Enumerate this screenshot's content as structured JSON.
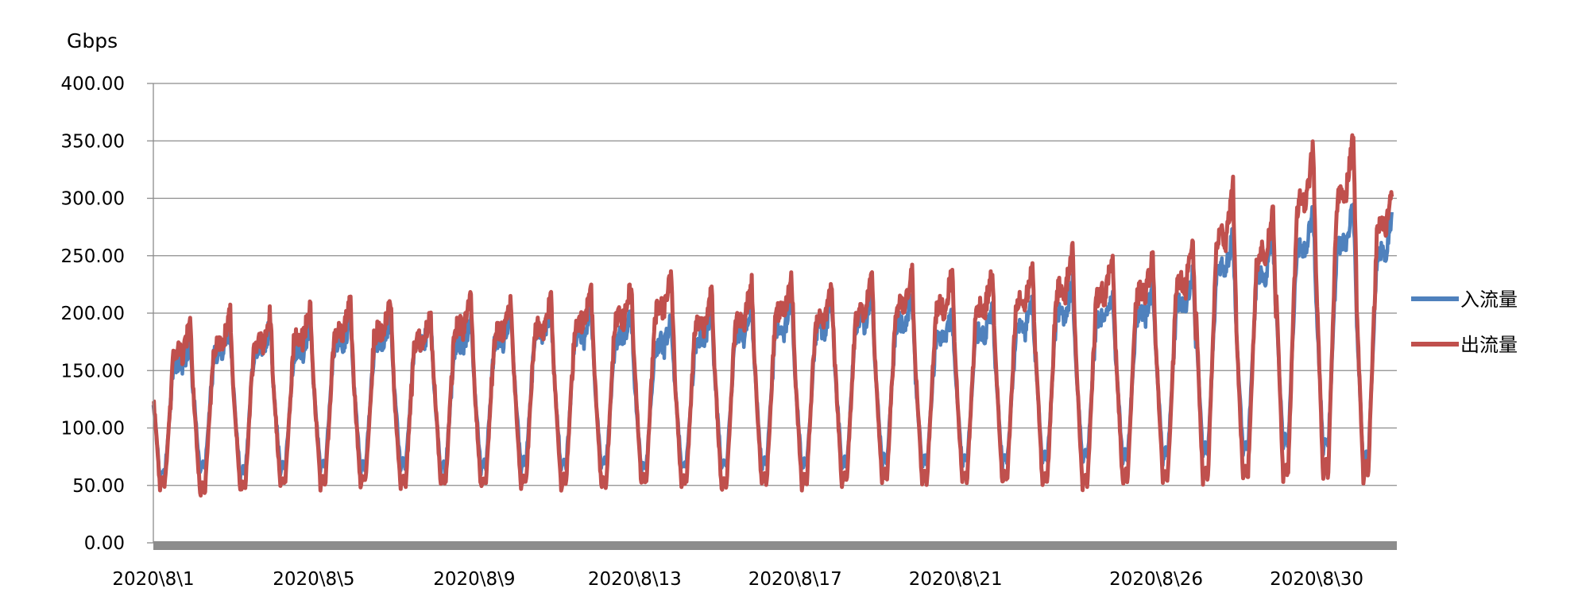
{
  "chart_data": {
    "type": "line",
    "unit_label": "Gbps",
    "y_ticks": [
      "0.00",
      "50.00",
      "100.00",
      "150.00",
      "200.00",
      "250.00",
      "300.00",
      "350.00",
      "400.00"
    ],
    "ylim": [
      0,
      400
    ],
    "x_ticks": [
      "2020\\8\\1",
      "2020\\8\\5",
      "2020\\8\\9",
      "2020\\8\\13",
      "2020\\8\\17",
      "2020\\8\\21",
      "2020\\8\\26",
      "2020\\8\\30"
    ],
    "x_tick_days": [
      1,
      5,
      9,
      13,
      17,
      21,
      26,
      30
    ],
    "xlim": [
      "2020-08-01",
      "2020-08-31"
    ],
    "grid": "horizontal",
    "legend_position": "right",
    "x": [
      "2020-08-01",
      "2020-08-02",
      "2020-08-03",
      "2020-08-04",
      "2020-08-05",
      "2020-08-06",
      "2020-08-07",
      "2020-08-08",
      "2020-08-09",
      "2020-08-10",
      "2020-08-11",
      "2020-08-12",
      "2020-08-13",
      "2020-08-14",
      "2020-08-15",
      "2020-08-16",
      "2020-08-17",
      "2020-08-18",
      "2020-08-19",
      "2020-08-20",
      "2020-08-21",
      "2020-08-22",
      "2020-08-23",
      "2020-08-24",
      "2020-08-25",
      "2020-08-26",
      "2020-08-27",
      "2020-08-28",
      "2020-08-29",
      "2020-08-30",
      "2020-08-31"
    ],
    "series": [
      {
        "name": "入流量",
        "color": "#4F81BD",
        "daily_low": [
          55,
          60,
          55,
          60,
          62,
          60,
          62,
          58,
          60,
          62,
          60,
          62,
          60,
          62,
          60,
          62,
          60,
          62,
          65,
          65,
          65,
          65,
          65,
          68,
          68,
          68,
          70,
          75,
          78,
          75,
          62
        ],
        "daily_peak": [
          175,
          185,
          190,
          190,
          195,
          195,
          195,
          195,
          200,
          205,
          205,
          200,
          195,
          200,
          205,
          210,
          210,
          215,
          215,
          200,
          205,
          210,
          225,
          220,
          225,
          235,
          270,
          265,
          290,
          295,
          290
        ]
      },
      {
        "name": "出流量",
        "color": "#C0504D",
        "daily_low": [
          45,
          38,
          42,
          45,
          45,
          45,
          44,
          46,
          45,
          45,
          45,
          45,
          45,
          44,
          42,
          45,
          45,
          47,
          48,
          47,
          48,
          47,
          45,
          45,
          48,
          48,
          45,
          48,
          47,
          48,
          50
        ],
        "daily_peak": [
          190,
          200,
          200,
          205,
          210,
          210,
          200,
          215,
          210,
          215,
          220,
          225,
          235,
          220,
          225,
          230,
          225,
          230,
          235,
          235,
          235,
          240,
          255,
          250,
          250,
          260,
          310,
          290,
          345,
          355,
          320
        ]
      }
    ]
  }
}
